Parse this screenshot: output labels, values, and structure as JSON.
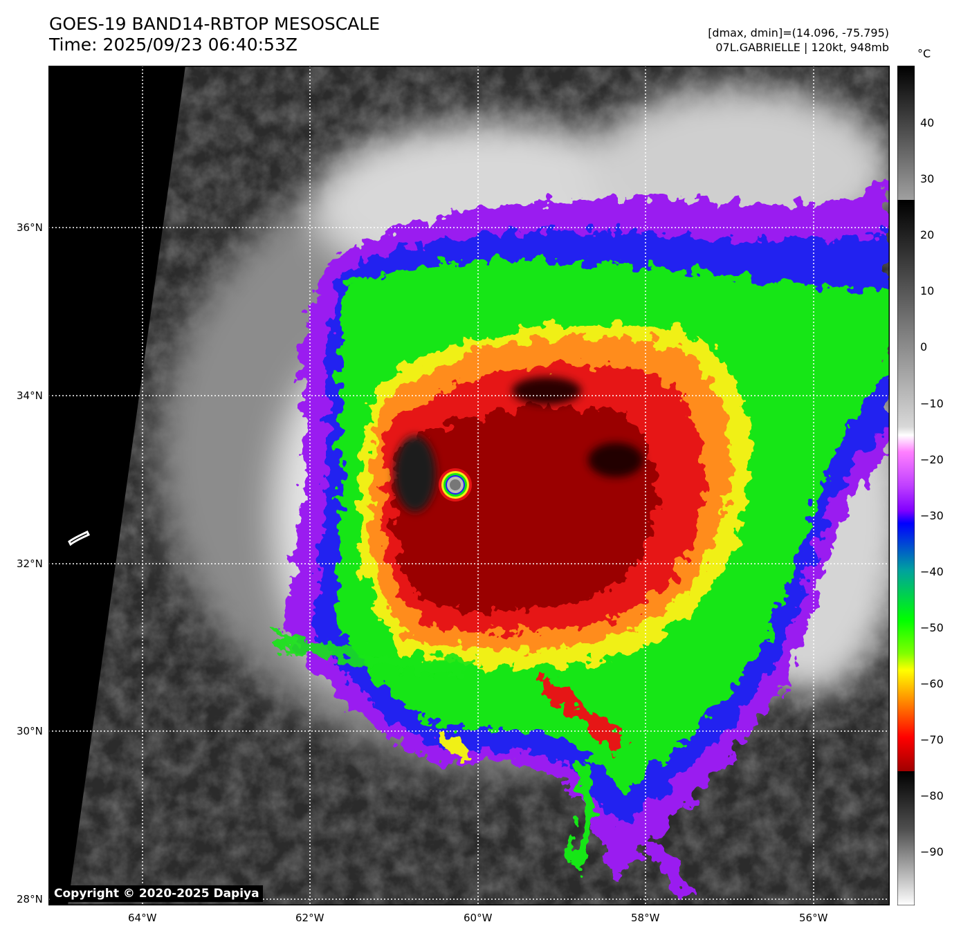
{
  "title": {
    "line1": "GOES-19 BAND14-RBTOP MESOSCALE",
    "line2": "Time: 2025/09/23 06:40:53Z"
  },
  "info": {
    "line1": "[dmax, dmin]=(14.096, -75.795)",
    "line2": "07L.GABRIELLE | 120kt, 948mb"
  },
  "colorbar": {
    "unit": "°C",
    "ticks": [
      "40",
      "30",
      "20",
      "10",
      "0",
      "−10",
      "−20",
      "−30",
      "−40",
      "−50",
      "−60",
      "−70",
      "−80",
      "−90"
    ],
    "range": [
      -100,
      48
    ]
  },
  "axes": {
    "lat_labels": [
      "36°N",
      "34°N",
      "32°N",
      "30°N",
      "28°N"
    ],
    "lon_labels": [
      "64°W",
      "62°W",
      "60°W",
      "58°W",
      "56°W"
    ]
  },
  "storm": {
    "eye_lon": -60.3,
    "eye_lat": 32.95
  },
  "copyright": "Copyright © 2020-2025 Dapiya"
}
